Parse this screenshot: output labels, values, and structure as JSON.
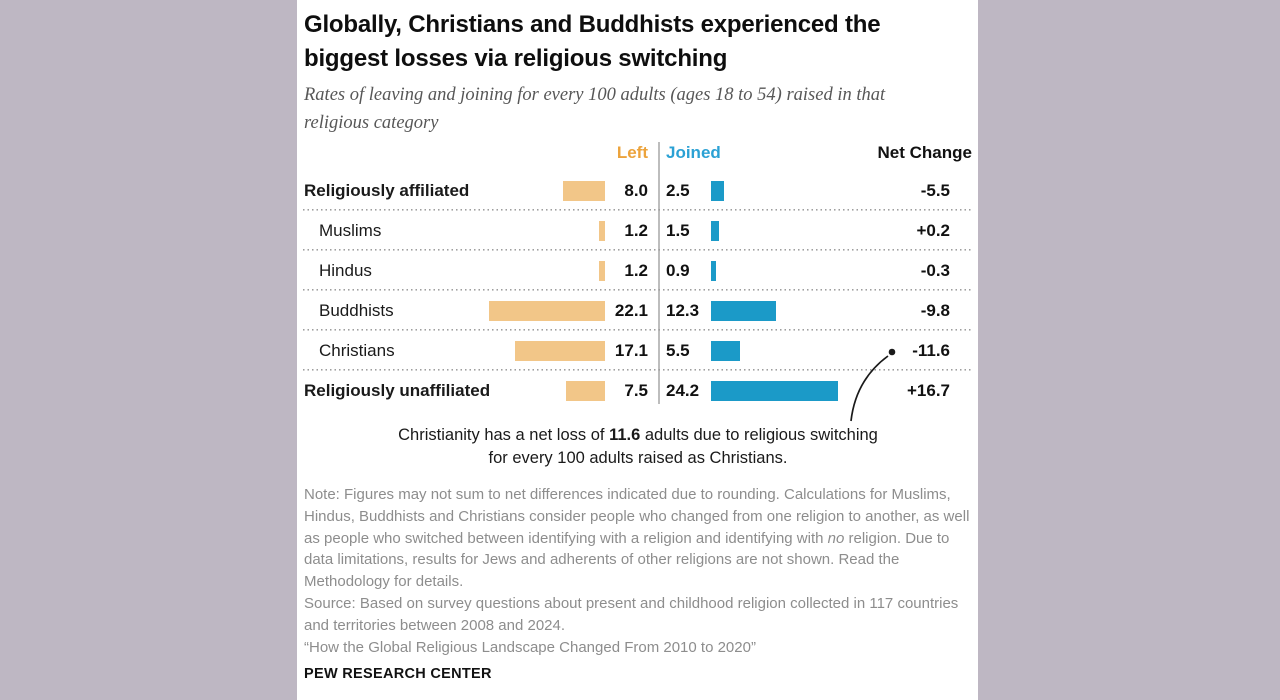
{
  "background_color": "#beb7c3",
  "card_color": "#ffffff",
  "header": {
    "title": "Globally, Christians and Buddhists experienced the biggest losses via religious switching",
    "subtitle": "Rates of leaving and joining for every 100 adults (ages 18 to 54) raised in that religious category"
  },
  "columns": {
    "left": "Left",
    "joined": "Joined",
    "net": "Net Change"
  },
  "chart_data": {
    "type": "bar",
    "orientation": "horizontal",
    "title": "Globally, Christians and Buddhists experienced the biggest losses via religious switching",
    "subtitle": "Rates of leaving and joining for every 100 adults (ages 18 to 54) raised in that religious category",
    "categories": [
      "Religiously affiliated",
      "Muslims",
      "Hindus",
      "Buddhists",
      "Christians",
      "Religiously unaffiliated"
    ],
    "series": [
      {
        "name": "Left",
        "color": "#f2c688",
        "values": [
          8.0,
          1.2,
          1.2,
          22.1,
          17.1,
          7.5
        ]
      },
      {
        "name": "Joined",
        "color": "#1b9ac8",
        "values": [
          2.5,
          1.5,
          0.9,
          12.3,
          5.5,
          24.2
        ]
      }
    ],
    "net_change": [
      -5.5,
      0.2,
      -0.3,
      -9.8,
      -11.6,
      16.7
    ],
    "bold_rows": [
      "Religiously affiliated",
      "Religiously unaffiliated"
    ],
    "indented_rows": [
      "Muslims",
      "Hindus",
      "Buddhists",
      "Christians"
    ],
    "annotated_row": "Christians",
    "value_unit": "per 100 adults raised in that category",
    "legend_position": "top",
    "grid": "dotted row separators"
  },
  "annotation": {
    "before": "Christianity has a net loss of ",
    "bold": "11.6",
    "after": " adults due to religious switching for every 100 adults raised as Christians."
  },
  "note": {
    "before": "Note: Figures may not sum to net differences indicated due to rounding. Calculations for Muslims, Hindus, Buddhists and Christians consider people who changed from one religion to another, as well as people who switched between identifying with a religion and identifying with ",
    "italic": "no",
    "after": " religion. Due to data limitations, results for Jews and adherents of other religions are not shown. Read the Methodology for details."
  },
  "source": "Source: Based on survey questions about present and childhood religion collected in 117 countries and territories between 2008 and 2024.",
  "report_title": "“How the Global Religious Landscape Changed From 2010 to 2020”",
  "footer": "PEW RESEARCH CENTER",
  "colors": {
    "left_header": "#eca33c",
    "joined_header": "#2ba1d4",
    "left_bar": "#f2c688",
    "joined_bar": "#1b9ac8",
    "callout": "#1a1a1a"
  }
}
